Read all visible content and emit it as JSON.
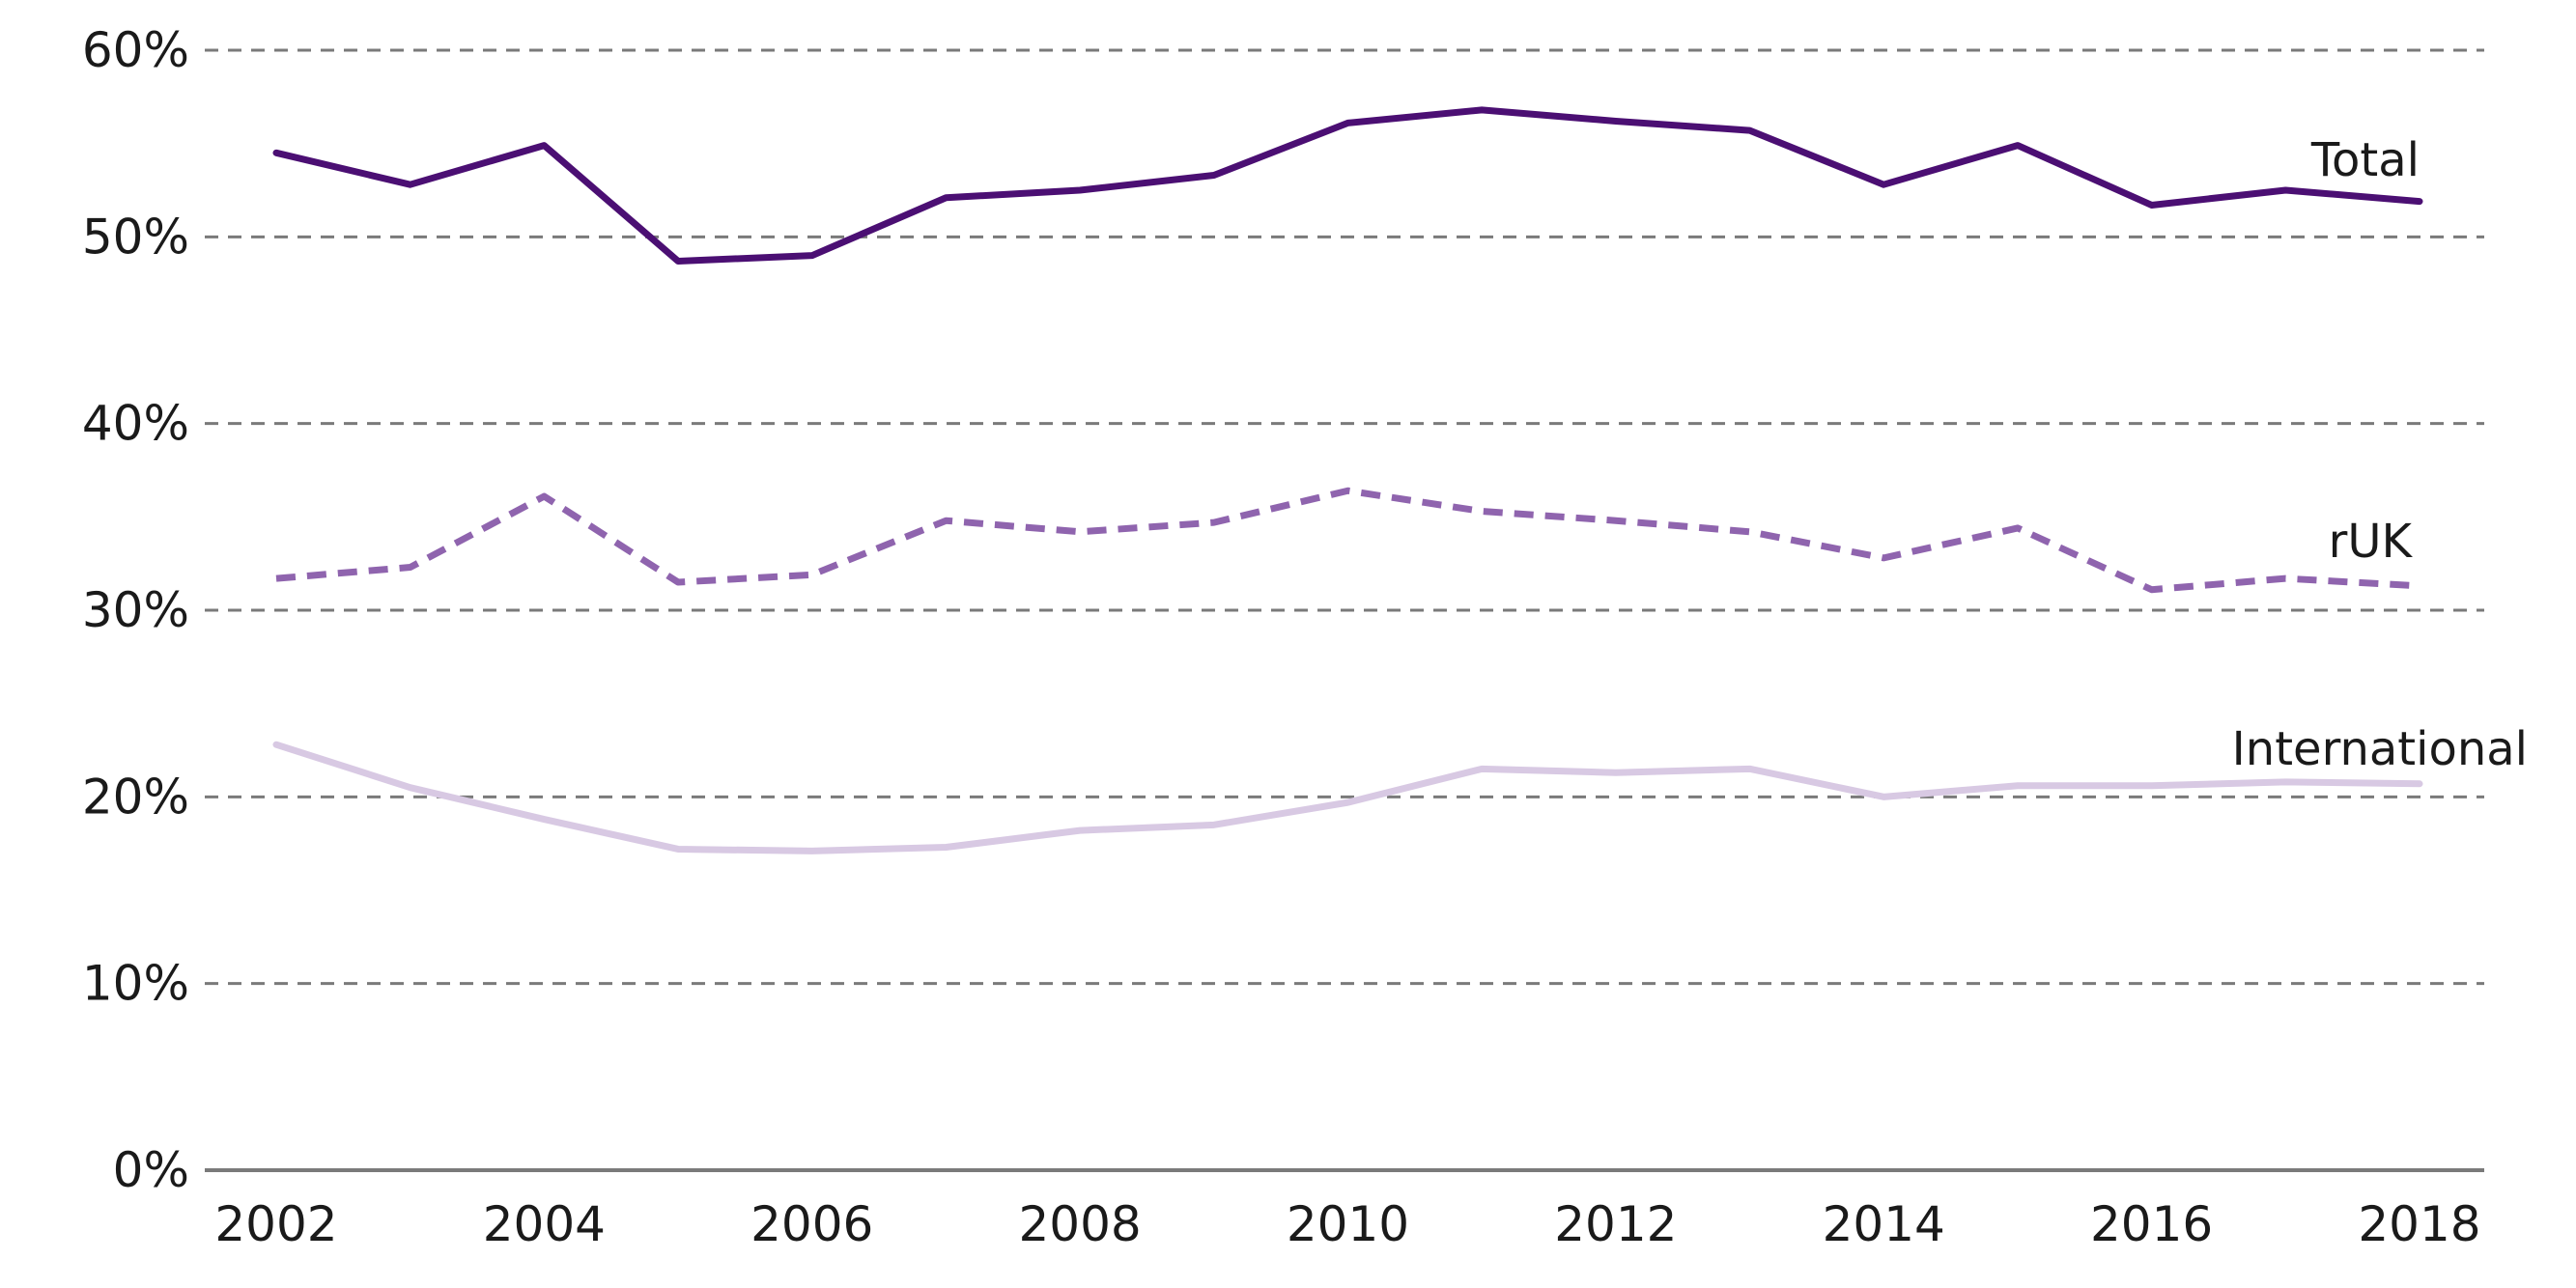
{
  "chart_data": {
    "type": "line",
    "title": "",
    "xlabel": "",
    "ylabel": "",
    "x": [
      2002,
      2003,
      2004,
      2005,
      2006,
      2007,
      2008,
      2009,
      2010,
      2011,
      2012,
      2013,
      2014,
      2015,
      2016,
      2017,
      2018
    ],
    "x_ticks": [
      "2002",
      "2004",
      "2006",
      "2008",
      "2010",
      "2012",
      "2014",
      "2016",
      "2018"
    ],
    "y_ticks": [
      "0%",
      "10%",
      "20%",
      "30%",
      "40%",
      "50%",
      "60%"
    ],
    "ylim": [
      0,
      60
    ],
    "grid": true,
    "series": [
      {
        "name": "Total",
        "color": "#4b0f73",
        "style": "solid",
        "values": [
          54.5,
          52.8,
          54.9,
          48.7,
          49.0,
          52.1,
          52.5,
          53.3,
          56.1,
          56.8,
          56.2,
          55.7,
          52.8,
          54.9,
          51.7,
          52.5,
          51.9
        ]
      },
      {
        "name": "rUK",
        "color": "#8f64ae",
        "style": "dashed",
        "values": [
          31.7,
          32.3,
          36.1,
          31.5,
          31.9,
          34.8,
          34.2,
          34.7,
          36.4,
          35.3,
          34.8,
          34.2,
          32.8,
          34.4,
          31.1,
          31.7,
          31.3
        ]
      },
      {
        "name": "International",
        "color": "#d8c9e3",
        "style": "solid",
        "values": [
          22.8,
          20.5,
          18.8,
          17.2,
          17.1,
          17.3,
          18.2,
          18.5,
          19.7,
          21.5,
          21.3,
          21.5,
          20.0,
          20.6,
          20.6,
          20.8,
          20.7
        ]
      }
    ]
  }
}
